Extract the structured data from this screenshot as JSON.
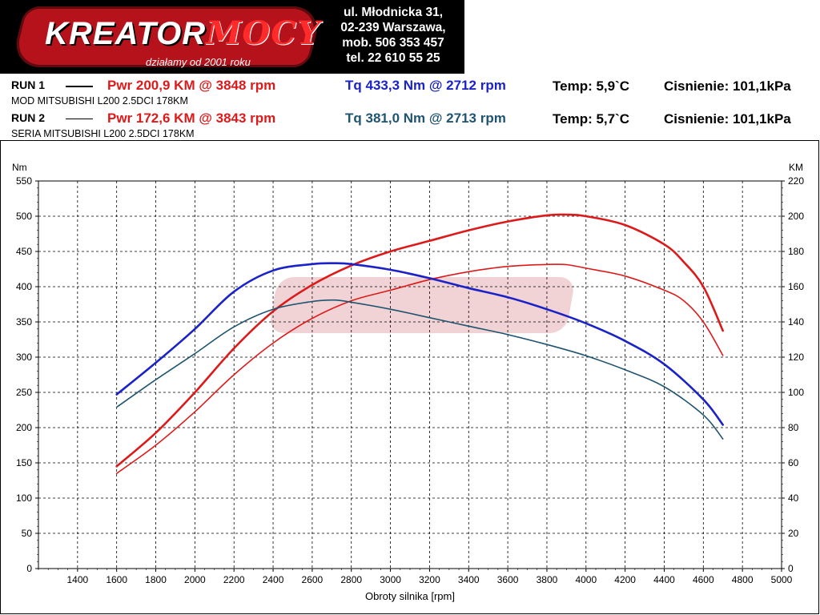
{
  "header": {
    "logo_text_a": "KREATOR",
    "logo_text_b": "MOCY",
    "logo_tagline": "działamy od 2001 roku",
    "address": [
      "ul. Młodnicka 31,",
      "02-239  Warszawa,",
      "mob.  506 353 457",
      "tel.  22 610 55 25"
    ]
  },
  "runs": [
    {
      "label": "RUN 1",
      "pwr": "Pwr  200,9 KM @ 3848 rpm",
      "tq": "Tq 433,3 Nm @ 2712 rpm",
      "temp": "Temp: 5,9`C",
      "pressure": "Cisnienie: 101,1kPa",
      "desc": "MOD MITSUBISHI L200 2.5DCI 178KM"
    },
    {
      "label": "RUN 2",
      "pwr": "Pwr  172,6 KM @ 3843 rpm",
      "tq": "Tq 381,0 Nm @ 2713 rpm",
      "temp": "Temp: 5,7`C",
      "pressure": "Cisnienie: 101,1kPa",
      "desc": "SERIA MITSUBISHI L200 2.5DCI 178KM"
    }
  ],
  "colors": {
    "pwr_run1": "#dd1a1a",
    "pwr_run2": "#dd1a1a",
    "tq_run1": "#1a22c8",
    "tq_run2": "#1f5470",
    "pwr_text": "#dd1a1a",
    "tq_text_run1": "#1a22c8",
    "tq_text_run2": "#1f5470"
  },
  "chart_data": {
    "type": "line",
    "xlabel": "Obroty silnika [rpm]",
    "ylabel_left": "Nm",
    "ylabel_right": "KM",
    "xlim": [
      1200,
      5000
    ],
    "ylim_left": [
      0,
      550
    ],
    "ylim_right": [
      0,
      220
    ],
    "x_ticks": [
      1400,
      1600,
      1800,
      2000,
      2200,
      2400,
      2600,
      2800,
      3000,
      3200,
      3400,
      3600,
      3800,
      4000,
      4200,
      4400,
      4600,
      4800,
      5000
    ],
    "y_ticks_left": [
      0,
      50,
      100,
      150,
      200,
      250,
      300,
      350,
      400,
      450,
      500,
      550
    ],
    "y_ticks_right": [
      0,
      20,
      40,
      60,
      80,
      100,
      120,
      140,
      160,
      180,
      200,
      220
    ],
    "grid": true,
    "series": [
      {
        "axis": "right",
        "color_key": "pwr_run1",
        "width": 2.6,
        "x": [
          1600,
          1800,
          2000,
          2200,
          2400,
          2600,
          2800,
          3000,
          3200,
          3400,
          3600,
          3800,
          3900,
          4000,
          4200,
          4400,
          4500,
          4600,
          4700
        ],
        "values": [
          58,
          77,
          100,
          125,
          146,
          161,
          172,
          180,
          186,
          192,
          197,
          200.5,
          200.9,
          200,
          195,
          184,
          174,
          160,
          135
        ]
      },
      {
        "axis": "right",
        "color_key": "pwr_run2",
        "width": 1.6,
        "x": [
          1600,
          1800,
          2000,
          2200,
          2400,
          2600,
          2800,
          3000,
          3200,
          3400,
          3600,
          3800,
          3900,
          4000,
          4200,
          4400,
          4500,
          4600,
          4700
        ],
        "values": [
          54,
          70,
          89,
          110,
          128,
          142,
          152,
          158,
          164,
          168.5,
          171.5,
          172.6,
          172.5,
          170.5,
          166,
          158,
          152,
          140,
          121
        ]
      },
      {
        "axis": "left",
        "color_key": "tq_run1",
        "width": 2.6,
        "x": [
          1600,
          1800,
          2000,
          2200,
          2400,
          2600,
          2712,
          2800,
          3000,
          3200,
          3400,
          3600,
          3800,
          4000,
          4200,
          4400,
          4600,
          4700
        ],
        "values": [
          247,
          292,
          340,
          393,
          423,
          432,
          433.3,
          432,
          424,
          412,
          398,
          385,
          368,
          348,
          323,
          290,
          240,
          204
        ]
      },
      {
        "axis": "left",
        "color_key": "tq_run2",
        "width": 1.6,
        "x": [
          1600,
          1800,
          2000,
          2200,
          2400,
          2600,
          2713,
          2800,
          3000,
          3200,
          3400,
          3600,
          3800,
          4000,
          4200,
          4400,
          4600,
          4700
        ],
        "values": [
          229,
          268,
          305,
          343,
          368,
          379,
          381,
          378,
          368,
          356,
          344,
          332,
          318,
          302,
          282,
          258,
          218,
          184
        ]
      }
    ]
  }
}
